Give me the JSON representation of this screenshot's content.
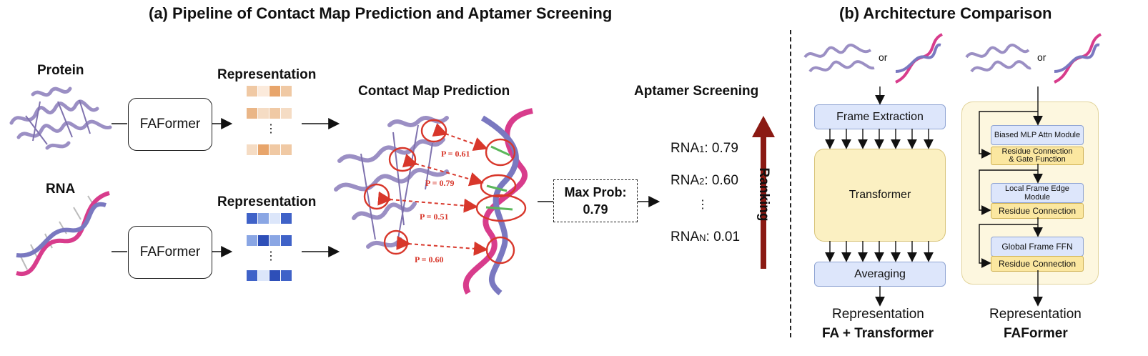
{
  "panel_a": {
    "title": "(a) Pipeline of Contact Map Prediction and Aptamer Screening",
    "protein_label": "Protein",
    "rna_label": "RNA",
    "encoder_top": "FAFormer",
    "encoder_bottom": "FAFormer",
    "representation_top": "Representation",
    "representation_bottom": "Representation",
    "ellipsis": "⋮",
    "contact_title": "Contact Map Prediction",
    "contacts": [
      "P = 0.61",
      "P = 0.79",
      "P = 0.51",
      "P = 0.60"
    ],
    "max_prob_label": "Max Prob:",
    "max_prob_value": "0.79",
    "screening_title": "Aptamer Screening",
    "ranking_label": "Ranking",
    "rna_scores": [
      {
        "name": "RNA",
        "sub": "1",
        "value": ": 0.79"
      },
      {
        "name": "RNA",
        "sub": "2",
        "value": ": 0.60"
      },
      {
        "name": "RNA",
        "sub": "N",
        "value": ": 0.01"
      }
    ],
    "score_ellipsis": "⋮",
    "orange_colors": [
      "#f0c9a4",
      "#e8a56b",
      "#f5dcc4",
      "#fbeadb"
    ],
    "blue_colors": [
      "#3f62c8",
      "#8aa6e4",
      "#dce6fa",
      "#2e4fb8"
    ]
  },
  "panel_b": {
    "title": "(b) Architecture Comparison",
    "or_left": "or",
    "or_right": "or",
    "frame_extraction": "Frame Extraction",
    "transformer": "Transformer",
    "averaging": "Averaging",
    "left_output": "Representation",
    "left_caption": "FA + Transformer",
    "modules": [
      {
        "name": "Biased MLP Attn Module",
        "residual": "Residue Connection\n& Gate Function"
      },
      {
        "name": "Local Frame Edge Module",
        "residual": "Residue Connection"
      },
      {
        "name": "Global Frame FFN",
        "residual": "Residue Connection"
      }
    ],
    "right_output": "Representation",
    "right_caption": "FAFormer"
  },
  "colors": {
    "protein": "#9b8fc4",
    "rna_pink": "#d83c8c",
    "rna_blue": "#7a78c0",
    "contact_red": "#d8372b",
    "ranking_arrow": "#8b1a13"
  }
}
